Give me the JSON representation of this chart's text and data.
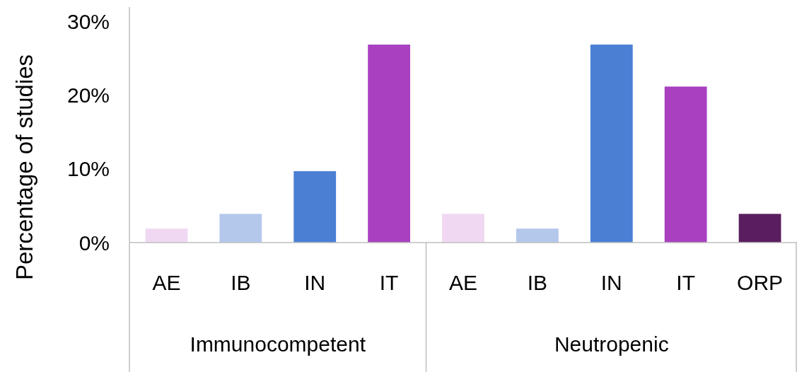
{
  "chart_data": {
    "type": "bar",
    "ylabel": "Percentage of studies",
    "categories": [
      "AE",
      "IB",
      "IN",
      "IT",
      "AE",
      "IB",
      "IN",
      "IT",
      "ORP"
    ],
    "values": [
      1.9,
      3.9,
      9.7,
      26.9,
      3.9,
      1.9,
      26.9,
      21.2,
      3.9
    ],
    "colors": [
      "#f0d8f2",
      "#b4c8ec",
      "#4a7fd4",
      "#a840c0",
      "#f0d8f2",
      "#b4c8ec",
      "#4a7fd4",
      "#a840c0",
      "#5a1e60"
    ],
    "ylim": [
      0,
      32
    ],
    "yticks": [
      {
        "value": 0,
        "label": "0%"
      },
      {
        "value": 10,
        "label": "10%"
      },
      {
        "value": 20,
        "label": "20%"
      },
      {
        "value": 30,
        "label": "30%"
      }
    ],
    "annotations": [
      "Immunocompetent",
      "Neutropenic"
    ],
    "grid": false
  }
}
